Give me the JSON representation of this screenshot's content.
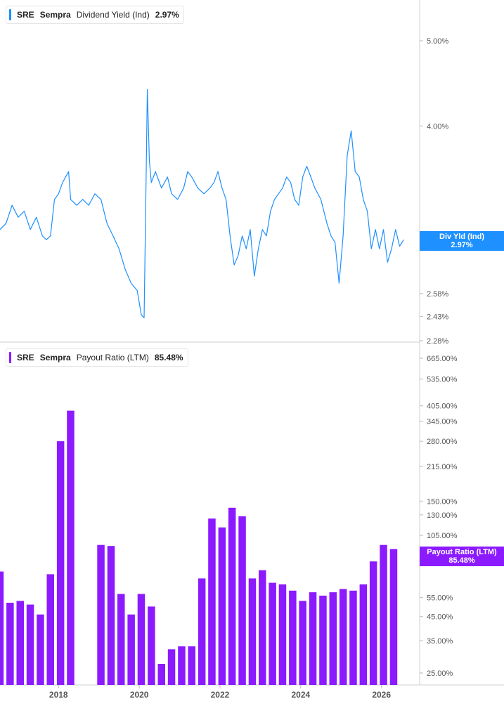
{
  "top_legend": {
    "ticker": "SRE",
    "name": "Sempra",
    "metric": "Dividend Yield (Ind)",
    "value": "2.97%",
    "color": "#1e90ff"
  },
  "bottom_legend": {
    "ticker": "SRE",
    "name": "Sempra",
    "metric": "Payout Ratio (LTM)",
    "value": "85.48%",
    "color": "#8c1aff"
  },
  "top_badge": {
    "label": "Div Yld (Ind)",
    "value": "2.97%"
  },
  "bottom_badge": {
    "label": "Payout Ratio (LTM)",
    "value": "85.48%"
  },
  "x_axis_labels": [
    "2018",
    "2020",
    "2022",
    "2024",
    "2026"
  ],
  "chart_data": [
    {
      "type": "line",
      "series": [
        {
          "name": "Dividend Yield (Ind)",
          "color": "#1e90ff"
        }
      ],
      "y_scale": "log",
      "y_ticks": [
        "5.00%",
        "4.00%",
        "2.58%",
        "2.43%",
        "2.28%"
      ],
      "points": [
        [
          2016.55,
          3.05
        ],
        [
          2016.7,
          3.1
        ],
        [
          2016.85,
          3.25
        ],
        [
          2017.0,
          3.15
        ],
        [
          2017.15,
          3.2
        ],
        [
          2017.3,
          3.05
        ],
        [
          2017.45,
          3.15
        ],
        [
          2017.6,
          3.0
        ],
        [
          2017.7,
          2.97
        ],
        [
          2017.8,
          3.0
        ],
        [
          2017.9,
          3.3
        ],
        [
          2018.0,
          3.35
        ],
        [
          2018.1,
          3.45
        ],
        [
          2018.25,
          3.55
        ],
        [
          2018.3,
          3.3
        ],
        [
          2018.45,
          3.25
        ],
        [
          2018.6,
          3.3
        ],
        [
          2018.75,
          3.25
        ],
        [
          2018.9,
          3.35
        ],
        [
          2019.05,
          3.3
        ],
        [
          2019.2,
          3.1
        ],
        [
          2019.35,
          3.0
        ],
        [
          2019.5,
          2.9
        ],
        [
          2019.65,
          2.75
        ],
        [
          2019.8,
          2.65
        ],
        [
          2019.95,
          2.6
        ],
        [
          2020.05,
          2.44
        ],
        [
          2020.12,
          2.42
        ],
        [
          2020.15,
          3.0
        ],
        [
          2020.2,
          4.4
        ],
        [
          2020.25,
          3.65
        ],
        [
          2020.3,
          3.45
        ],
        [
          2020.4,
          3.55
        ],
        [
          2020.55,
          3.4
        ],
        [
          2020.7,
          3.5
        ],
        [
          2020.8,
          3.35
        ],
        [
          2020.95,
          3.3
        ],
        [
          2021.1,
          3.4
        ],
        [
          2021.2,
          3.55
        ],
        [
          2021.3,
          3.5
        ],
        [
          2021.45,
          3.4
        ],
        [
          2021.6,
          3.35
        ],
        [
          2021.75,
          3.4
        ],
        [
          2021.85,
          3.45
        ],
        [
          2021.95,
          3.55
        ],
        [
          2022.05,
          3.4
        ],
        [
          2022.15,
          3.3
        ],
        [
          2022.25,
          3.0
        ],
        [
          2022.35,
          2.78
        ],
        [
          2022.45,
          2.85
        ],
        [
          2022.55,
          3.0
        ],
        [
          2022.65,
          2.9
        ],
        [
          2022.75,
          3.05
        ],
        [
          2022.85,
          2.7
        ],
        [
          2022.95,
          2.9
        ],
        [
          2023.05,
          3.05
        ],
        [
          2023.15,
          3.0
        ],
        [
          2023.25,
          3.2
        ],
        [
          2023.35,
          3.3
        ],
        [
          2023.45,
          3.35
        ],
        [
          2023.55,
          3.4
        ],
        [
          2023.65,
          3.5
        ],
        [
          2023.75,
          3.45
        ],
        [
          2023.85,
          3.3
        ],
        [
          2023.95,
          3.25
        ],
        [
          2024.05,
          3.5
        ],
        [
          2024.15,
          3.6
        ],
        [
          2024.25,
          3.5
        ],
        [
          2024.35,
          3.4
        ],
        [
          2024.5,
          3.3
        ],
        [
          2024.65,
          3.1
        ],
        [
          2024.75,
          3.0
        ],
        [
          2024.85,
          2.95
        ],
        [
          2024.95,
          2.65
        ],
        [
          2025.05,
          3.0
        ],
        [
          2025.15,
          3.7
        ],
        [
          2025.25,
          3.95
        ],
        [
          2025.35,
          3.55
        ],
        [
          2025.45,
          3.5
        ],
        [
          2025.55,
          3.3
        ],
        [
          2025.65,
          3.2
        ],
        [
          2025.75,
          2.9
        ],
        [
          2025.85,
          3.05
        ],
        [
          2025.95,
          2.9
        ],
        [
          2026.05,
          3.05
        ],
        [
          2026.15,
          2.8
        ],
        [
          2026.25,
          2.9
        ],
        [
          2026.35,
          3.05
        ],
        [
          2026.45,
          2.92
        ],
        [
          2026.55,
          2.97
        ]
      ]
    },
    {
      "type": "bar",
      "series": [
        {
          "name": "Payout Ratio (LTM)",
          "color": "#8c1aff"
        }
      ],
      "y_scale": "log",
      "y_ticks": [
        "665.00%",
        "535.00%",
        "405.00%",
        "345.00%",
        "280.00%",
        "215.00%",
        "150.00%",
        "130.00%",
        "105.00%",
        "55.00%",
        "45.00%",
        "35.00%",
        "25.00%"
      ],
      "x": [
        2016.55,
        2016.8,
        2017.05,
        2017.3,
        2017.55,
        2017.8,
        2018.05,
        2018.3,
        2019.05,
        2019.3,
        2019.55,
        2019.8,
        2020.05,
        2020.3,
        2020.55,
        2020.8,
        2021.05,
        2021.3,
        2021.55,
        2021.8,
        2022.05,
        2022.3,
        2022.55,
        2022.8,
        2023.05,
        2023.3,
        2023.55,
        2023.8,
        2024.05,
        2024.3,
        2024.55,
        2024.8,
        2025.05,
        2025.3,
        2025.55,
        2025.8,
        2026.05,
        2026.3
      ],
      "values": [
        72,
        52,
        53,
        51,
        46,
        70,
        280,
        385,
        95,
        94,
        57,
        46,
        57,
        50,
        27.5,
        32,
        33,
        33,
        67,
        125,
        114,
        140,
        128,
        67,
        73,
        64,
        63,
        59,
        53,
        58,
        56,
        58,
        60,
        59,
        63,
        80,
        95,
        91
      ]
    }
  ]
}
